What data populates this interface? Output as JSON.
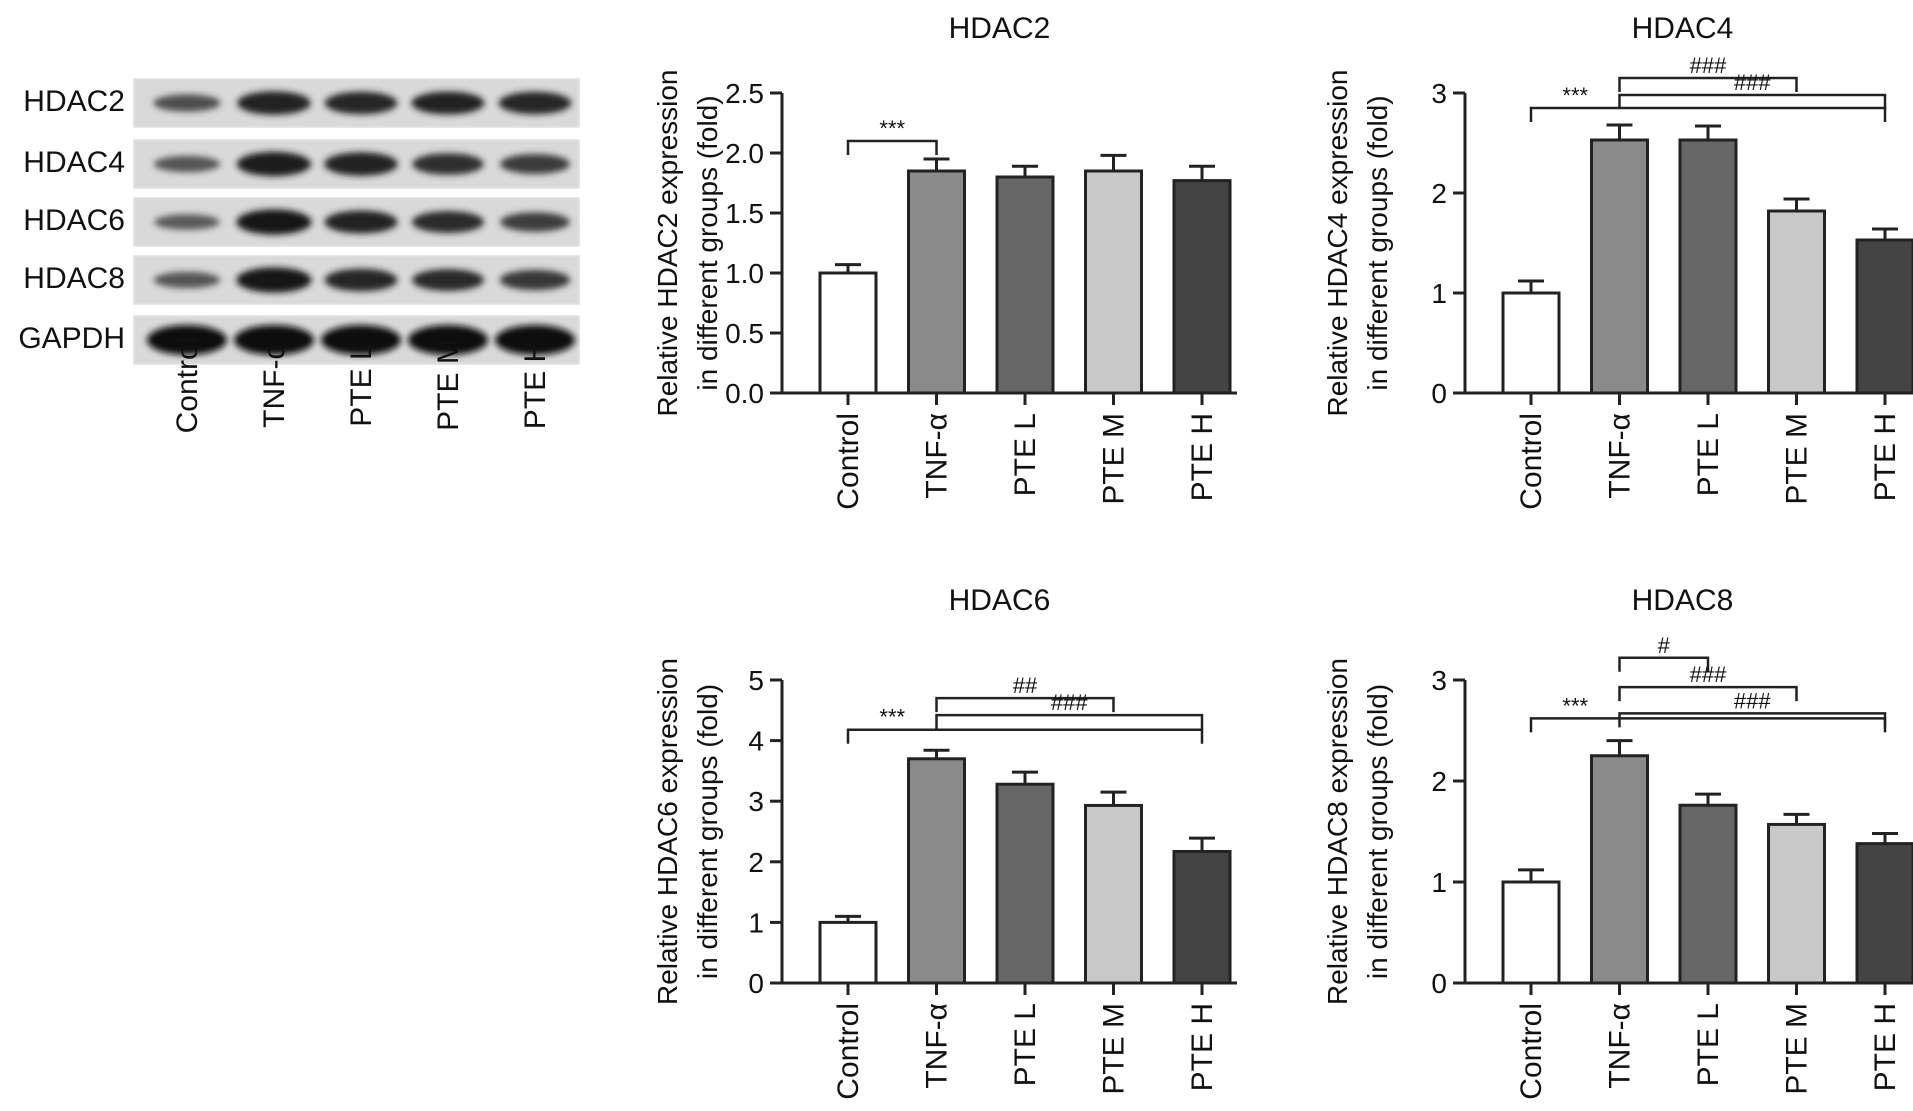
{
  "colors": {
    "Control": "#ffffff",
    "TNF-α": "#8a8a8a",
    "PTE L": "#666666",
    "PTE M": "#c8c8c8",
    "PTE H": "#444444"
  },
  "blot": {
    "proteins": [
      "HDAC2",
      "HDAC4",
      "HDAC6",
      "HDAC8",
      "GAPDH"
    ],
    "lanes": [
      "Control",
      "TNF-α",
      "PTE L",
      "PTE M",
      "PTE H"
    ],
    "band_intensity": [
      [
        0.45,
        0.85,
        0.8,
        0.82,
        0.8
      ],
      [
        0.4,
        0.9,
        0.85,
        0.72,
        0.62
      ],
      [
        0.35,
        0.95,
        0.82,
        0.75,
        0.6
      ],
      [
        0.4,
        0.95,
        0.8,
        0.75,
        0.65
      ],
      [
        1.0,
        1.0,
        1.0,
        1.0,
        1.0
      ]
    ]
  },
  "chart_data": [
    {
      "type": "bar",
      "title": "HDAC2",
      "ylabel": [
        "Relative HDAC2 expression",
        "in different groups (fold)"
      ],
      "categories": [
        "Control",
        "TNF-α",
        "PTE L",
        "PTE M",
        "PTE H"
      ],
      "values": [
        1.0,
        1.85,
        1.8,
        1.85,
        1.77
      ],
      "errors": [
        0.07,
        0.1,
        0.09,
        0.13,
        0.12
      ],
      "ylim": [
        0,
        2.5
      ],
      "yticks": [
        "0.0",
        "0.5",
        "1.0",
        "1.5",
        "2.0",
        "2.5"
      ],
      "significance": [
        {
          "from": 0,
          "to": [
            1
          ],
          "label": "***",
          "level": 2.1
        }
      ]
    },
    {
      "type": "bar",
      "title": "HDAC4",
      "ylabel": [
        "Relative HDAC4 expression",
        "in different groups (fold)"
      ],
      "categories": [
        "Control",
        "TNF-α",
        "PTE L",
        "PTE M",
        "PTE H"
      ],
      "values": [
        1.0,
        2.53,
        2.53,
        1.82,
        1.53
      ],
      "errors": [
        0.12,
        0.15,
        0.14,
        0.12,
        0.11
      ],
      "ylim": [
        0,
        3
      ],
      "yticks": [
        "0",
        "1",
        "2",
        "3"
      ],
      "significance": [
        {
          "from": 0,
          "to": [
            4
          ],
          "label": "***",
          "level": 2.85
        },
        {
          "from": 1,
          "to": [
            3
          ],
          "label": "###",
          "level": 3.15
        },
        {
          "from": 1,
          "to": [
            4
          ],
          "label": "###",
          "level": 2.98
        }
      ]
    },
    {
      "type": "bar",
      "title": "HDAC6",
      "ylabel": [
        "Relative HDAC6 expression",
        "in different groups (fold)"
      ],
      "categories": [
        "Control",
        "TNF-α",
        "PTE L",
        "PTE M",
        "PTE H"
      ],
      "values": [
        1.0,
        3.7,
        3.28,
        2.93,
        2.17
      ],
      "errors": [
        0.1,
        0.14,
        0.2,
        0.22,
        0.22
      ],
      "ylim": [
        0,
        5
      ],
      "yticks": [
        "0",
        "1",
        "2",
        "3",
        "4",
        "5"
      ],
      "significance": [
        {
          "from": 0,
          "to": [
            4
          ],
          "label": "***",
          "level": 4.18
        },
        {
          "from": 1,
          "to": [
            3
          ],
          "label": "##",
          "level": 4.7
        },
        {
          "from": 1,
          "to": [
            4
          ],
          "label": "###",
          "level": 4.42
        }
      ]
    },
    {
      "type": "bar",
      "title": "HDAC8",
      "ylabel": [
        "Relative HDAC8 expression",
        "in different groups (fold)"
      ],
      "categories": [
        "Control",
        "TNF-α",
        "PTE L",
        "PTE M",
        "PTE H"
      ],
      "values": [
        1.0,
        2.25,
        1.76,
        1.57,
        1.38
      ],
      "errors": [
        0.12,
        0.15,
        0.11,
        0.1,
        0.1
      ],
      "ylim": [
        0,
        3
      ],
      "yticks": [
        "0",
        "1",
        "2",
        "3"
      ],
      "significance": [
        {
          "from": 0,
          "to": [
            4
          ],
          "label": "***",
          "level": 2.62
        },
        {
          "from": 1,
          "to": [
            2
          ],
          "label": "#",
          "level": 3.22
        },
        {
          "from": 1,
          "to": [
            3
          ],
          "label": "###",
          "level": 2.93
        },
        {
          "from": 1,
          "to": [
            4
          ],
          "label": "###",
          "level": 2.67
        }
      ]
    }
  ]
}
